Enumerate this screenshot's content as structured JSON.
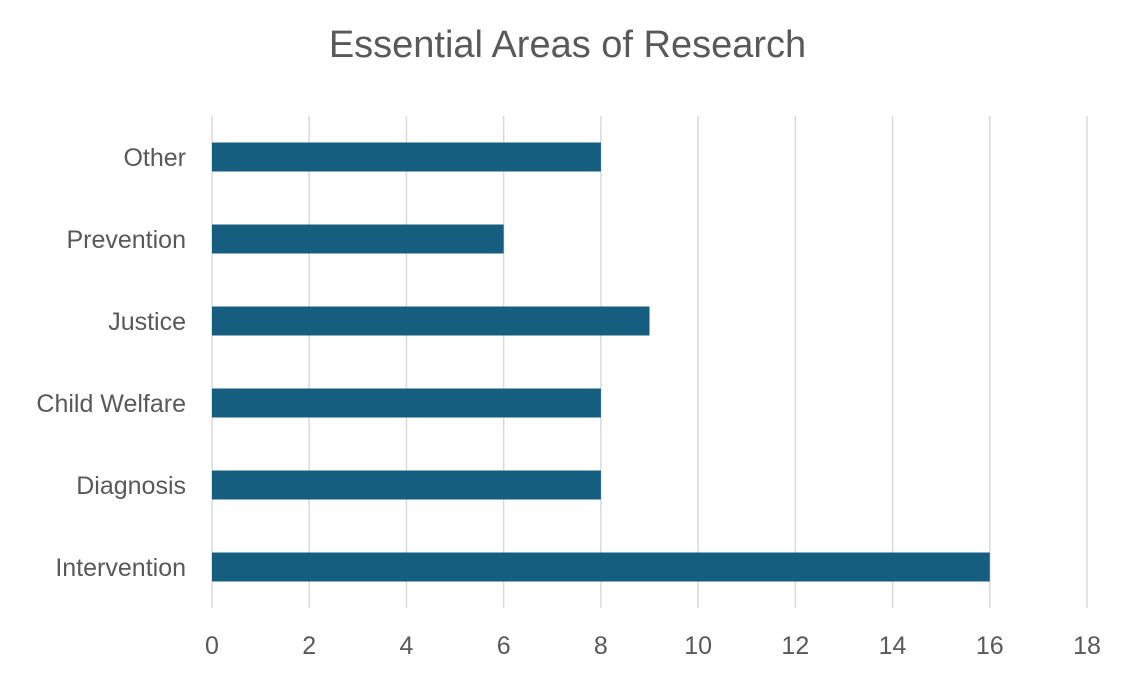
{
  "chart_data": {
    "type": "bar",
    "orientation": "horizontal",
    "title": "Essential Areas of Research",
    "categories": [
      "Intervention",
      "Diagnosis",
      "Child Welfare",
      "Justice",
      "Prevention",
      "Other"
    ],
    "values": [
      16,
      8,
      8,
      9,
      6,
      8
    ],
    "xlim": [
      0,
      18
    ],
    "xticks": [
      "0",
      "2",
      "4",
      "6",
      "8",
      "10",
      "12",
      "14",
      "16",
      "18"
    ],
    "grid": "vertical",
    "legend": "none",
    "bar_color": "#165E80",
    "grid_color": "#D9D9D9",
    "text_color": "#595959"
  }
}
